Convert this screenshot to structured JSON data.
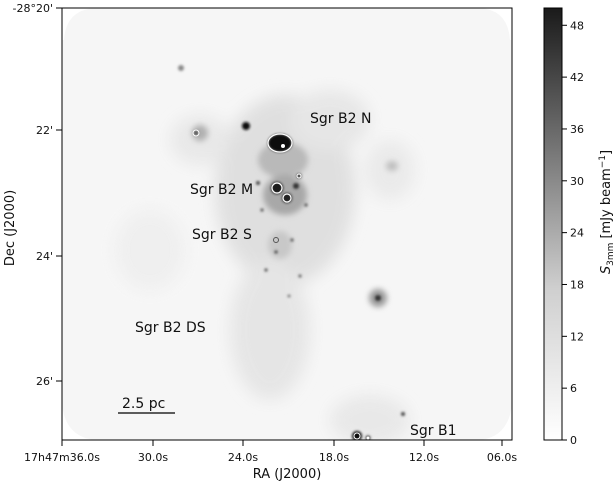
{
  "figure": {
    "xlabel": "RA (J2000)",
    "ylabel": "Dec (J2000)",
    "x_ticks": [
      "17h47m36.0s",
      "30.0s",
      "24.0s",
      "18.0s",
      "12.0s",
      "06.0s"
    ],
    "y_ticks": [
      "-28°20'",
      "22'",
      "24'",
      "26'"
    ],
    "scalebar_label": "2.5 pc",
    "sources": [
      {
        "label": "Sgr B2 N"
      },
      {
        "label": "Sgr B2 M"
      },
      {
        "label": "Sgr B2 S"
      },
      {
        "label": "Sgr B2 DS"
      },
      {
        "label": "Sgr B1"
      }
    ],
    "colorbar": {
      "label": "S_3mm [mJy beam^-1]",
      "label_main": "S",
      "label_sub": "3mm",
      "label_unit": "[mJy beam",
      "label_exp": "−1",
      "label_close": "]",
      "ticks": [
        "0",
        "6",
        "12",
        "18",
        "24",
        "30",
        "36",
        "42",
        "48"
      ],
      "range": [
        0,
        50
      ],
      "colormap": "gray_r",
      "low_color": "#ffffff",
      "high_color": "#1a1a1a"
    }
  }
}
